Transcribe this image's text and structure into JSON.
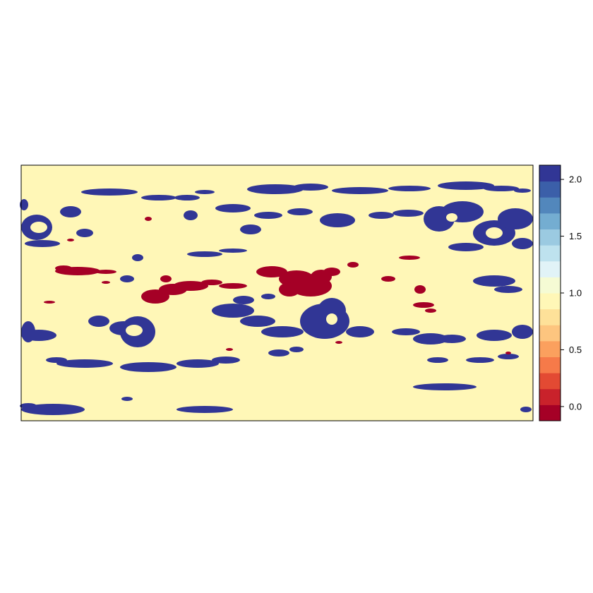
{
  "chart_data": {
    "type": "heatmap",
    "title": "",
    "xlabel": "",
    "ylabel": "",
    "legend_placement": "right",
    "values_present": [
      0.0,
      1.0,
      2.0
    ],
    "colorbar": {
      "range": [
        -0.125,
        2.125
      ],
      "ticks": [
        {
          "value": 0.0,
          "label": "0.0"
        },
        {
          "value": 0.5,
          "label": "0.5"
        },
        {
          "value": 1.0,
          "label": "1.0"
        },
        {
          "value": 1.5,
          "label": "1.5"
        },
        {
          "value": 2.0,
          "label": "2.0"
        }
      ],
      "colors": [
        "#A50026",
        "#C9222B",
        "#E34A33",
        "#F67A49",
        "#FBA05E",
        "#FDC57F",
        "#FEE199",
        "#FFF7B7",
        "#F5FBD4",
        "#E1F3F7",
        "#BEE2EE",
        "#9BCAE1",
        "#74ADD1",
        "#5287BC",
        "#3B5FA9",
        "#313695"
      ]
    },
    "value_colors": {
      "0": "#A50026",
      "1": "#FFF7B7",
      "2": "#313695"
    },
    "background_value": 1.0
  }
}
